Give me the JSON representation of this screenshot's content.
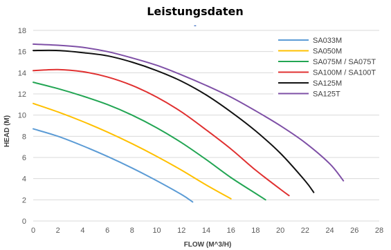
{
  "chart_data": {
    "type": "line",
    "title": "Leistungsdaten",
    "title_mark": "-",
    "xlabel": "FLOW (M^3/H)",
    "ylabel": "HEAD (M)",
    "xlim": [
      0,
      28
    ],
    "ylim": [
      0,
      18
    ],
    "x_ticks": [
      0,
      2,
      4,
      6,
      8,
      10,
      12,
      14,
      16,
      18,
      20,
      22,
      24,
      26,
      28
    ],
    "x_tick_labels": [
      "0",
      "2",
      "4",
      "6",
      "8",
      "10",
      "12",
      "14",
      "16",
      "18",
      "20",
      "22",
      "24",
      "26",
      "28"
    ],
    "y_ticks": [
      0,
      2,
      4,
      6,
      8,
      10,
      12,
      14,
      16,
      18
    ],
    "y_tick_labels": [
      "0",
      "2",
      "4",
      "6",
      "8",
      "10",
      "12",
      "14",
      "16",
      "18"
    ],
    "grid": "horizontal",
    "legend_position": "top-right",
    "series": [
      {
        "name": "SA033M",
        "color": "#5b9bd5",
        "points": [
          [
            0,
            8.7
          ],
          [
            2,
            8.0
          ],
          [
            4,
            7.1
          ],
          [
            6,
            6.1
          ],
          [
            8,
            5.0
          ],
          [
            10,
            3.8
          ],
          [
            12,
            2.5
          ],
          [
            12.9,
            1.8
          ]
        ]
      },
      {
        "name": "SA050M",
        "color": "#ffc000",
        "points": [
          [
            0,
            11.1
          ],
          [
            2,
            10.3
          ],
          [
            4,
            9.4
          ],
          [
            6,
            8.4
          ],
          [
            8,
            7.3
          ],
          [
            10,
            6.1
          ],
          [
            12,
            4.8
          ],
          [
            14,
            3.4
          ],
          [
            16,
            2.1
          ]
        ]
      },
      {
        "name": "SA075M / SA075T",
        "color": "#22a553",
        "points": [
          [
            0,
            13.1
          ],
          [
            2,
            12.5
          ],
          [
            4,
            11.8
          ],
          [
            6,
            11.0
          ],
          [
            8,
            10.0
          ],
          [
            10,
            8.8
          ],
          [
            12,
            7.4
          ],
          [
            14,
            5.8
          ],
          [
            16,
            4.1
          ],
          [
            18,
            2.6
          ],
          [
            18.8,
            2.0
          ]
        ]
      },
      {
        "name": "SA100M / SA100T",
        "color": "#e03030",
        "points": [
          [
            0,
            14.2
          ],
          [
            2,
            14.3
          ],
          [
            4,
            14.1
          ],
          [
            6,
            13.6
          ],
          [
            8,
            12.8
          ],
          [
            10,
            11.7
          ],
          [
            12,
            10.3
          ],
          [
            14,
            8.6
          ],
          [
            16,
            6.8
          ],
          [
            18,
            4.8
          ],
          [
            20,
            3.0
          ],
          [
            20.7,
            2.4
          ]
        ]
      },
      {
        "name": "SA125M",
        "color": "#111111",
        "points": [
          [
            0,
            16.1
          ],
          [
            2,
            16.1
          ],
          [
            4,
            15.9
          ],
          [
            6,
            15.6
          ],
          [
            8,
            15.0
          ],
          [
            10,
            14.2
          ],
          [
            12,
            13.2
          ],
          [
            14,
            11.9
          ],
          [
            16,
            10.3
          ],
          [
            18,
            8.5
          ],
          [
            20,
            6.4
          ],
          [
            22,
            3.8
          ],
          [
            22.7,
            2.7
          ]
        ]
      },
      {
        "name": "SA125T",
        "color": "#7e4fa6",
        "points": [
          [
            0,
            16.7
          ],
          [
            2,
            16.6
          ],
          [
            4,
            16.4
          ],
          [
            6,
            16.0
          ],
          [
            8,
            15.4
          ],
          [
            10,
            14.7
          ],
          [
            12,
            13.8
          ],
          [
            14,
            12.8
          ],
          [
            16,
            11.7
          ],
          [
            18,
            10.4
          ],
          [
            20,
            9.0
          ],
          [
            22,
            7.4
          ],
          [
            24,
            5.4
          ],
          [
            25.1,
            3.8
          ]
        ]
      }
    ]
  }
}
